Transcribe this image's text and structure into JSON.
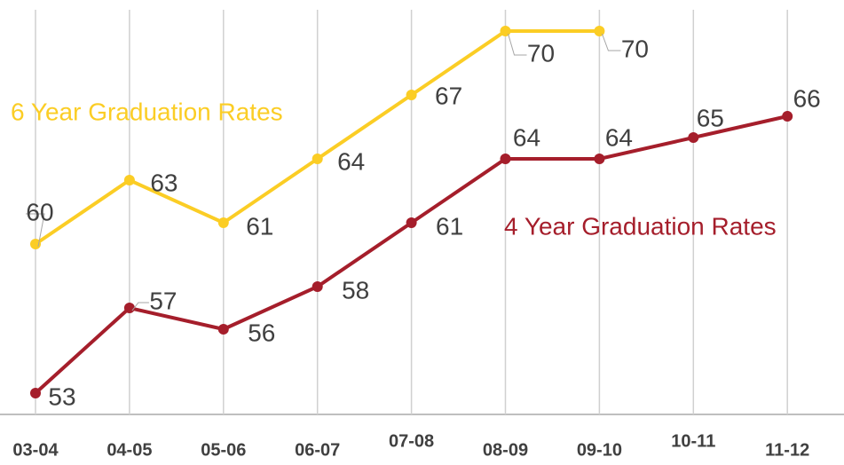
{
  "chart_data": {
    "type": "line",
    "categories": [
      "03-04",
      "04-05",
      "05-06",
      "06-07",
      "07-08",
      "08-09",
      "09-10",
      "10-11",
      "11-12"
    ],
    "series": [
      {
        "name": "6 Year Graduation Rates",
        "color": "#fbcd25",
        "values": [
          60,
          63,
          61,
          64,
          67,
          70,
          70,
          null,
          null
        ]
      },
      {
        "name": "4 Year Graduation Rates",
        "color": "#a51e2b",
        "values": [
          53,
          57,
          56,
          58,
          61,
          64,
          64,
          65,
          66
        ]
      }
    ],
    "ylim": [
      52,
      71
    ],
    "grid": true
  }
}
